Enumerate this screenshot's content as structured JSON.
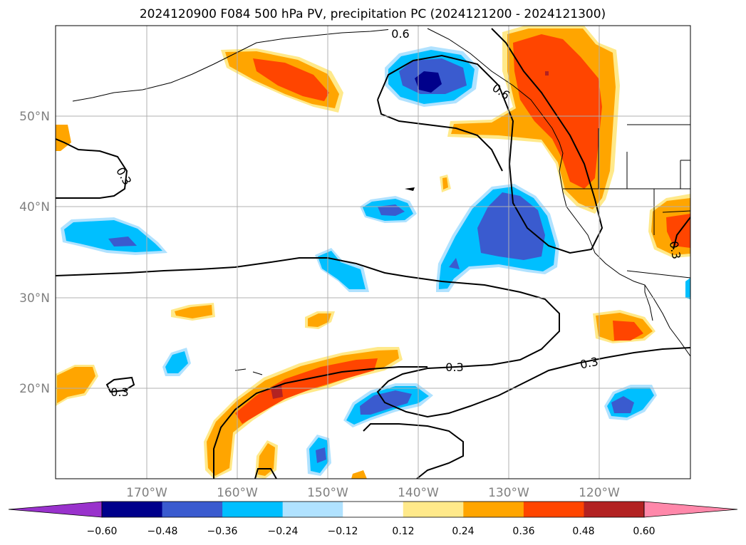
{
  "title": "2024120900 F084 500 hPa PV, precipitation PC (2024121200 - 2024121300)",
  "map": {
    "lon_labels": [
      "170°W",
      "160°W",
      "150°W",
      "140°W",
      "130°W",
      "120°W"
    ],
    "lat_labels": [
      "50°N",
      "40°N",
      "30°N",
      "20°N"
    ],
    "contour_labels": [
      "0.6",
      "0.6",
      "0.3",
      "0.3",
      "0.3",
      "0.3",
      "0.3"
    ]
  },
  "colorbar": {
    "tick_labels": [
      "−0.60",
      "−0.48",
      "−0.36",
      "−0.24",
      "−0.12",
      "0.12",
      "0.24",
      "0.36",
      "0.48",
      "0.60"
    ],
    "colors": [
      "#9932cc",
      "#00008b",
      "#3a5bcf",
      "#00bfff",
      "#b0e2ff",
      "#ffffff",
      "#ffe98a",
      "#ffa500",
      "#ff4500",
      "#b22222",
      "#ff88aa"
    ]
  }
}
